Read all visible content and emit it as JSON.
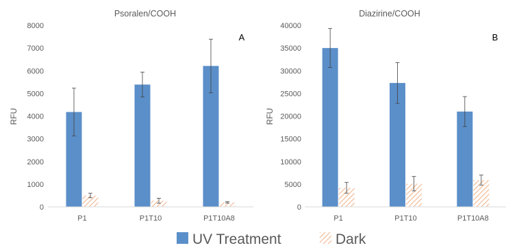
{
  "colors": {
    "uv": "#5B8FC9",
    "dark_hatch": "#F1B58E",
    "axis": "#D9D9D9",
    "text": "#595959",
    "error_bar": "#404040"
  },
  "legend": {
    "items": [
      {
        "label": "UV Treatment",
        "style": "solid"
      },
      {
        "label": "Dark",
        "style": "hatch"
      }
    ]
  },
  "chart_data": [
    {
      "type": "bar",
      "title": "Psoralen/COOH",
      "panel_label": "A",
      "ylabel": "RFU",
      "xlabel": "",
      "categories": [
        "P1",
        "P1T10",
        "P1T10A8"
      ],
      "ylim": [
        0,
        8000
      ],
      "yticks": [
        0,
        1000,
        2000,
        3000,
        4000,
        5000,
        6000,
        7000,
        8000
      ],
      "series": [
        {
          "name": "UV Treatment",
          "values": [
            4180,
            5390,
            6210
          ],
          "errors": [
            1050,
            550,
            1180
          ]
        },
        {
          "name": "Dark",
          "values": [
            500,
            270,
            200
          ],
          "errors": [
            100,
            110,
            30
          ]
        }
      ]
    },
    {
      "type": "bar",
      "title": "Diazirine/COOH",
      "panel_label": "B",
      "ylabel": "RFU",
      "xlabel": "",
      "categories": [
        "P1",
        "P1T10",
        "P1T10A8"
      ],
      "ylim": [
        0,
        40000
      ],
      "yticks": [
        0,
        5000,
        10000,
        15000,
        20000,
        25000,
        30000,
        35000,
        40000
      ],
      "series": [
        {
          "name": "UV Treatment",
          "values": [
            35000,
            27300,
            21000
          ],
          "errors": [
            4300,
            4500,
            3300
          ]
        },
        {
          "name": "Dark",
          "values": [
            4200,
            5100,
            5900
          ],
          "errors": [
            1200,
            1600,
            1100
          ]
        }
      ]
    }
  ]
}
